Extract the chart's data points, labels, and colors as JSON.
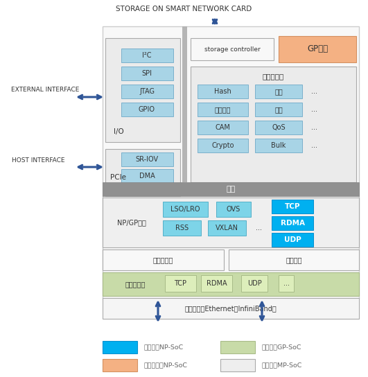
{
  "title": "STORAGE ON SMART NETWORK CARD",
  "bg_color": "#ffffff",
  "legend": [
    {
      "color": "#00b0f0",
      "label": "仅存在于NP-SoC"
    },
    {
      "color": "#c8dba8",
      "label": "仅存在于GP-SoC"
    },
    {
      "color": "#f4b183",
      "label": "可能存在于NP-SoC"
    },
    {
      "color": "#eeeeee",
      "label": "均存在于MP-SoC"
    }
  ]
}
